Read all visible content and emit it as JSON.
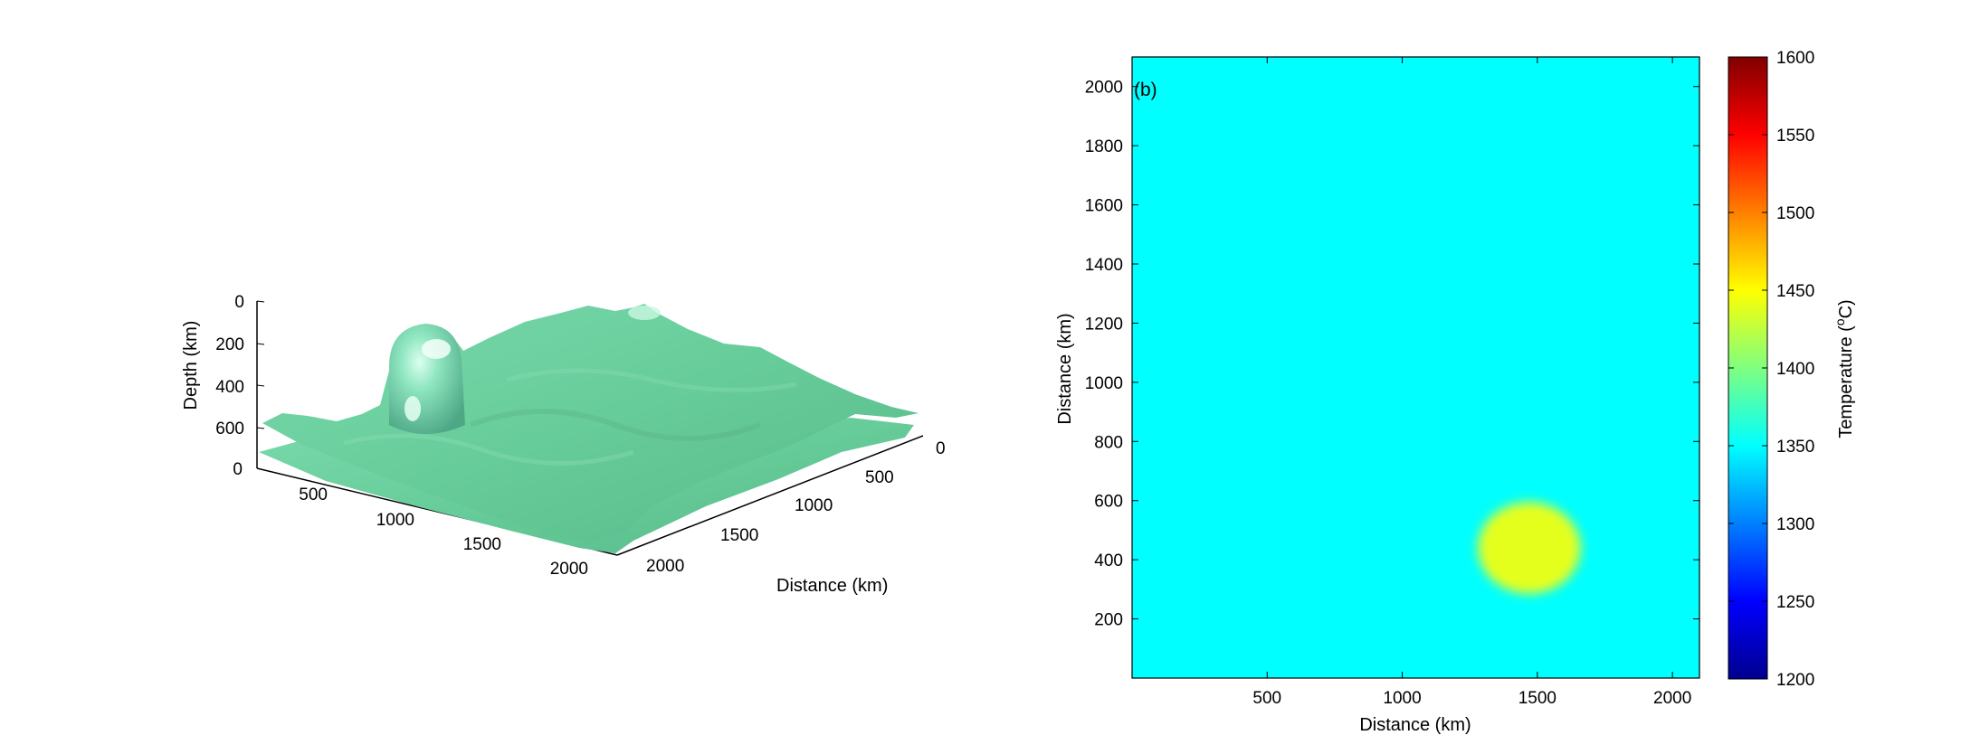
{
  "chart_data": [
    {
      "type": "surface",
      "panel_label": "",
      "xlabel": "Distance (km)",
      "ylabel": "",
      "zlabel": "Depth (km)",
      "x_ticks": [
        "0",
        "500",
        "1000",
        "1500",
        "2000"
      ],
      "y_ticks": [
        "0",
        "500",
        "1000",
        "1500",
        "2000"
      ],
      "z_ticks": [
        "0",
        "200",
        "400",
        "600"
      ],
      "surface_color": "#66cc99",
      "features": [
        "plume-head",
        "ridge-bump"
      ]
    },
    {
      "type": "heatmap",
      "panel_label": "(b)",
      "xlabel": "Distance (km)",
      "ylabel": "Distance (km)",
      "xlim": [
        0,
        2100
      ],
      "ylim": [
        0,
        2100
      ],
      "x_ticks": [
        500,
        1000,
        1500,
        2000
      ],
      "y_ticks": [
        200,
        400,
        600,
        800,
        1000,
        1200,
        1400,
        1600,
        1800,
        2000
      ],
      "background_temperature": 1350,
      "anomaly": {
        "center_x": 1470,
        "center_y": 440,
        "radius_x": 190,
        "radius_y": 155,
        "temperature": 1440
      },
      "colorbar": {
        "label": "Temperature (°C)",
        "label_parts": [
          "Temperature (",
          "o",
          "C)"
        ],
        "min": 1200,
        "max": 1600,
        "ticks": [
          1200,
          1250,
          1300,
          1350,
          1400,
          1450,
          1500,
          1550,
          1600
        ],
        "colormap": "jet"
      }
    }
  ]
}
